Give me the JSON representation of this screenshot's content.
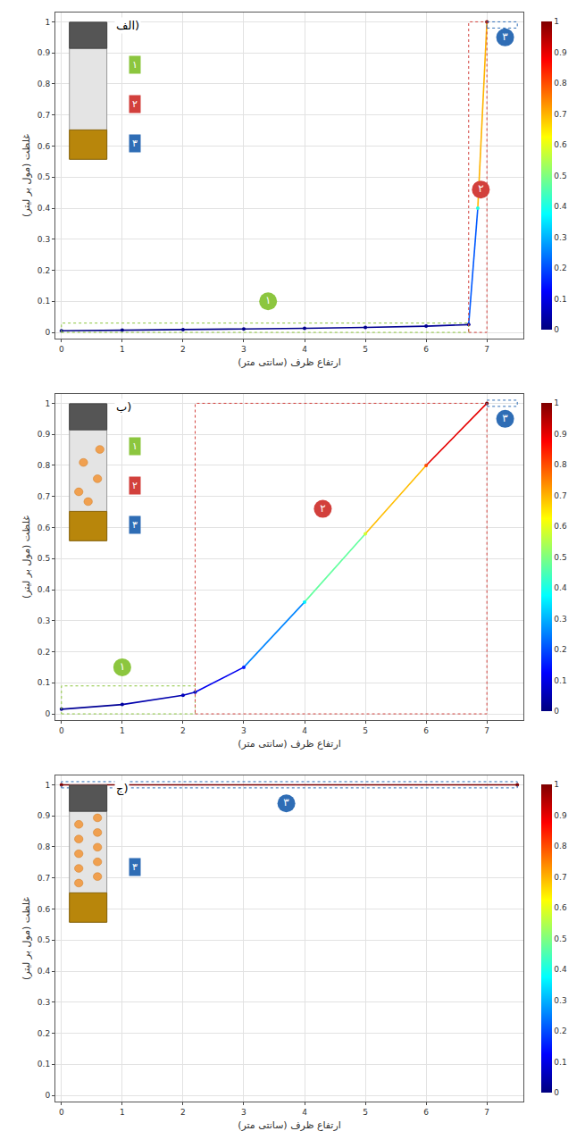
{
  "chart_data": [
    {
      "type": "line",
      "title": "الف)",
      "xlabel": "ارتفاع ظرف (سانتی متر)",
      "ylabel": "غلظت (مول بر لیتر)",
      "x": [
        0,
        1,
        2,
        3,
        4,
        5,
        6,
        6.7,
        6.85,
        7.0
      ],
      "values": [
        0.005,
        0.007,
        0.009,
        0.011,
        0.013,
        0.016,
        0.02,
        0.025,
        0.4,
        1.0
      ],
      "xlim": [
        -0.1,
        7.6
      ],
      "ylim": [
        -0.02,
        1.03
      ],
      "xticks": [
        0,
        1,
        2,
        3,
        4,
        5,
        6,
        7
      ],
      "yticks": [
        0,
        0.1,
        0.2,
        0.3,
        0.4,
        0.5,
        0.6,
        0.7,
        0.8,
        0.9,
        1
      ],
      "grid": true,
      "colorbar": {
        "range": [
          0,
          1
        ],
        "ticks": [
          0,
          0.1,
          0.2,
          0.3,
          0.4,
          0.5,
          0.6,
          0.7,
          0.8,
          0.9,
          1
        ]
      },
      "regions": [
        {
          "label": "۱",
          "color": "#8cc63f",
          "x": [
            0,
            6.7
          ],
          "y": [
            0,
            0.03
          ]
        },
        {
          "label": "۲",
          "color": "#d2403c",
          "x": [
            6.7,
            7.0
          ],
          "y": [
            0,
            1.0
          ]
        },
        {
          "label": "۳",
          "color": "#2f6db5",
          "x": [
            7.0,
            7.5
          ],
          "y": [
            0.98,
            1.0
          ]
        }
      ],
      "annotations": [
        {
          "text": "۱",
          "x": 3.4,
          "y": 0.1
        },
        {
          "text": "۲",
          "x": 6.9,
          "y": 0.46
        },
        {
          "text": "۳",
          "x": 7.3,
          "y": 0.95
        }
      ],
      "inset_labels": [
        "۱",
        "۲",
        "۳"
      ]
    },
    {
      "type": "line",
      "title": "ب)",
      "xlabel": "ارتفاع ظرف (سانتی متر)",
      "ylabel": "غلظت (مول بر لیتر)",
      "x": [
        0,
        1,
        2,
        2.2,
        3,
        4,
        5,
        6,
        7
      ],
      "values": [
        0.015,
        0.03,
        0.06,
        0.07,
        0.15,
        0.36,
        0.58,
        0.8,
        1.0
      ],
      "xlim": [
        -0.1,
        7.6
      ],
      "ylim": [
        -0.02,
        1.03
      ],
      "xticks": [
        0,
        1,
        2,
        3,
        4,
        5,
        6,
        7
      ],
      "yticks": [
        0,
        0.1,
        0.2,
        0.3,
        0.4,
        0.5,
        0.6,
        0.7,
        0.8,
        0.9,
        1
      ],
      "grid": true,
      "colorbar": {
        "range": [
          0,
          1
        ],
        "ticks": [
          0,
          0.1,
          0.2,
          0.3,
          0.4,
          0.5,
          0.6,
          0.7,
          0.8,
          0.9,
          1
        ]
      },
      "regions": [
        {
          "label": "۱",
          "color": "#8cc63f",
          "x": [
            0,
            2.2
          ],
          "y": [
            0,
            0.09
          ]
        },
        {
          "label": "۲",
          "color": "#d2403c",
          "x": [
            2.2,
            7.0
          ],
          "y": [
            0,
            1.0
          ]
        },
        {
          "label": "۳",
          "color": "#2f6db5",
          "x": [
            7.0,
            7.5
          ],
          "y": [
            0.99,
            1.01
          ]
        }
      ],
      "annotations": [
        {
          "text": "۱",
          "x": 1.0,
          "y": 0.15
        },
        {
          "text": "۲",
          "x": 4.3,
          "y": 0.66
        },
        {
          "text": "۳",
          "x": 7.3,
          "y": 0.95
        }
      ],
      "inset_labels": [
        "۱",
        "۲",
        "۳"
      ]
    },
    {
      "type": "line",
      "title": "ج)",
      "xlabel": "ارتفاع ظرف (سانتی متر)",
      "ylabel": "غلظت (مول بر لیتر)",
      "x": [
        0,
        7.5
      ],
      "values": [
        1.0,
        1.0
      ],
      "xlim": [
        -0.1,
        7.6
      ],
      "ylim": [
        -0.02,
        1.03
      ],
      "xticks": [
        0,
        1,
        2,
        3,
        4,
        5,
        6,
        7
      ],
      "yticks": [
        0,
        0.1,
        0.2,
        0.3,
        0.4,
        0.5,
        0.6,
        0.7,
        0.8,
        0.9,
        1
      ],
      "grid": true,
      "colorbar": {
        "range": [
          0,
          1
        ],
        "ticks": [
          0,
          0.1,
          0.2,
          0.3,
          0.4,
          0.5,
          0.6,
          0.7,
          0.8,
          0.9,
          1
        ]
      },
      "regions": [
        {
          "label": "۳",
          "color": "#2f6db5",
          "x": [
            0,
            7.5
          ],
          "y": [
            0.99,
            1.01
          ]
        }
      ],
      "annotations": [
        {
          "text": "۳",
          "x": 3.7,
          "y": 0.94
        }
      ],
      "inset_labels": [
        "۳"
      ]
    }
  ]
}
